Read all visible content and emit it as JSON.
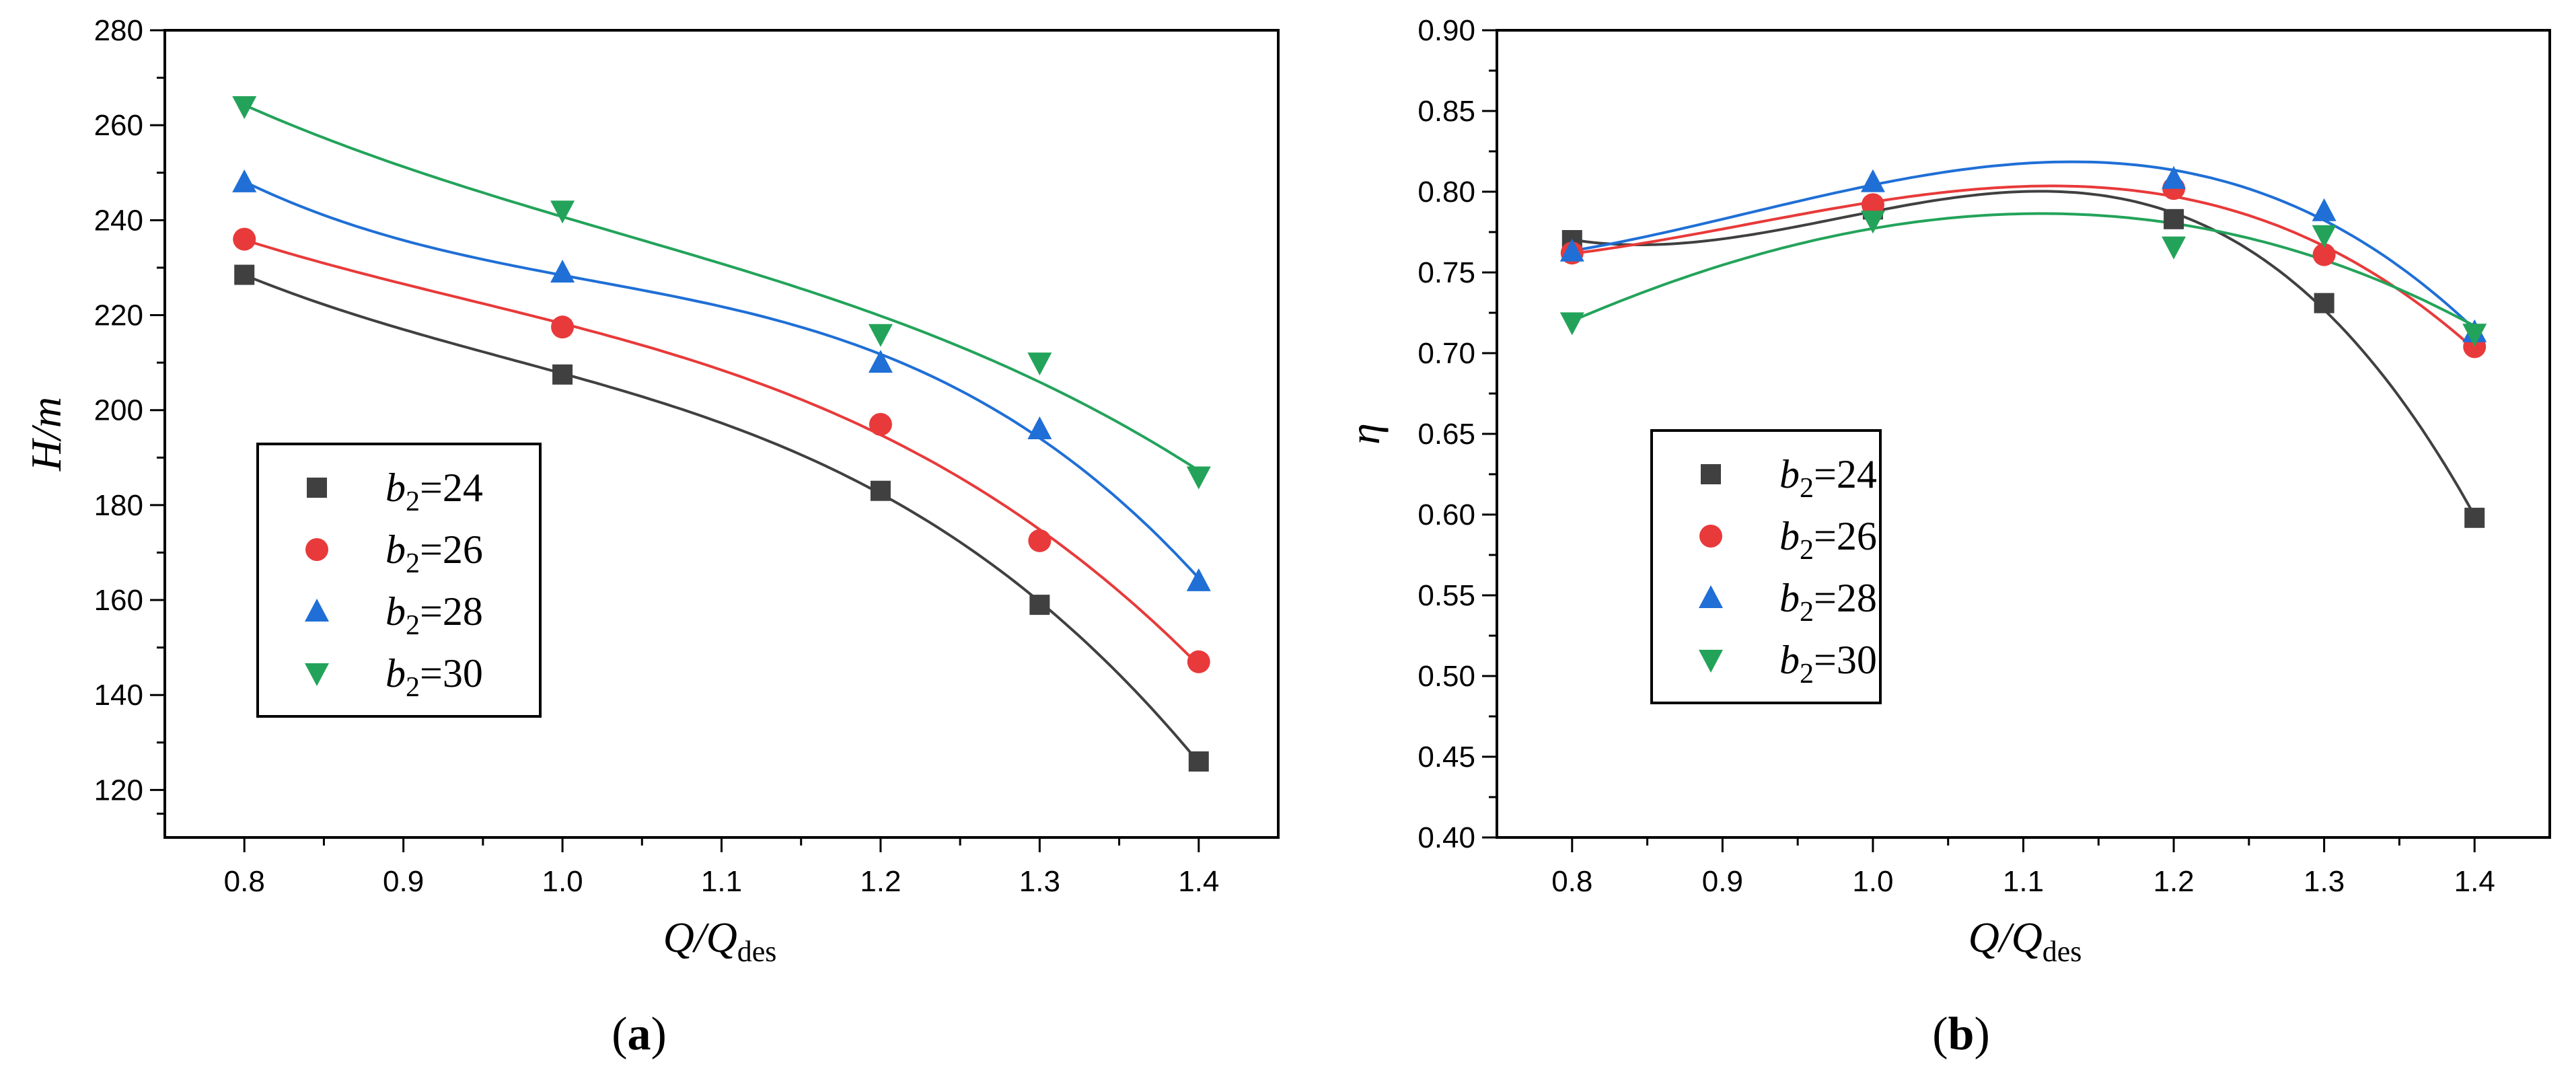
{
  "chart_data": [
    {
      "type": "scatter",
      "panel_label": "(a)",
      "xlabel": "Q/Q",
      "xlabel_sub": "des",
      "ylabel": "H/m",
      "xlim": [
        0.75,
        1.45
      ],
      "ylim": [
        110,
        280
      ],
      "xticks": [
        "0.8",
        "0.9",
        "1.0",
        "1.1",
        "1.2",
        "1.3",
        "1.4"
      ],
      "yticks": [
        "120",
        "140",
        "160",
        "180",
        "200",
        "220",
        "240",
        "260",
        "280"
      ],
      "legend_position": "lower-left",
      "x": [
        0.8,
        1.0,
        1.2,
        1.3,
        1.4
      ],
      "series": [
        {
          "name": "b2=24",
          "label_main": "b",
          "label_sub": "2",
          "label_rest": "=24",
          "color": "#404040",
          "marker": "square",
          "values": [
            228.5,
            207.5,
            183,
            159,
            126
          ]
        },
        {
          "name": "b2=26",
          "label_main": "b",
          "label_sub": "2",
          "label_rest": "=26",
          "color": "#e83a3a",
          "marker": "circle",
          "values": [
            236,
            217.5,
            197,
            172.5,
            147
          ]
        },
        {
          "name": "b2=28",
          "label_main": "b",
          "label_sub": "2",
          "label_rest": "=28",
          "color": "#1f6fd6",
          "marker": "triangle-up",
          "values": [
            248,
            229,
            210,
            196,
            164
          ]
        },
        {
          "name": "b2=30",
          "label_main": "b",
          "label_sub": "2",
          "label_rest": "=30",
          "color": "#23a35a",
          "marker": "triangle-down",
          "values": [
            264,
            242,
            216,
            210,
            186
          ]
        }
      ]
    },
    {
      "type": "scatter",
      "panel_label": "(b)",
      "xlabel": "Q/Q",
      "xlabel_sub": "des",
      "ylabel": "η",
      "xlim": [
        0.75,
        1.45
      ],
      "ylim": [
        0.4,
        0.9
      ],
      "xticks": [
        "0.8",
        "0.9",
        "1.0",
        "1.1",
        "1.2",
        "1.3",
        "1.4"
      ],
      "yticks": [
        "0.40",
        "0.45",
        "0.50",
        "0.55",
        "0.60",
        "0.65",
        "0.70",
        "0.75",
        "0.80",
        "0.85",
        "0.90"
      ],
      "legend_position": "lower-left",
      "x": [
        0.8,
        1.0,
        1.2,
        1.3,
        1.4
      ],
      "series": [
        {
          "name": "b2=24",
          "label_main": "b",
          "label_sub": "2",
          "label_rest": "=24",
          "color": "#404040",
          "marker": "square",
          "values": [
            0.77,
            0.789,
            0.783,
            0.731,
            0.598
          ]
        },
        {
          "name": "b2=26",
          "label_main": "b",
          "label_sub": "2",
          "label_rest": "=26",
          "color": "#e83a3a",
          "marker": "circle",
          "values": [
            0.762,
            0.792,
            0.802,
            0.761,
            0.704
          ]
        },
        {
          "name": "b2=28",
          "label_main": "b",
          "label_sub": "2",
          "label_rest": "=28",
          "color": "#1f6fd6",
          "marker": "triangle-up",
          "values": [
            0.763,
            0.806,
            0.808,
            0.788,
            0.713
          ]
        },
        {
          "name": "b2=30",
          "label_main": "b",
          "label_sub": "2",
          "label_rest": "=30",
          "color": "#23a35a",
          "marker": "triangle-down",
          "values": [
            0.719,
            0.782,
            0.766,
            0.773,
            0.712
          ]
        }
      ]
    }
  ]
}
